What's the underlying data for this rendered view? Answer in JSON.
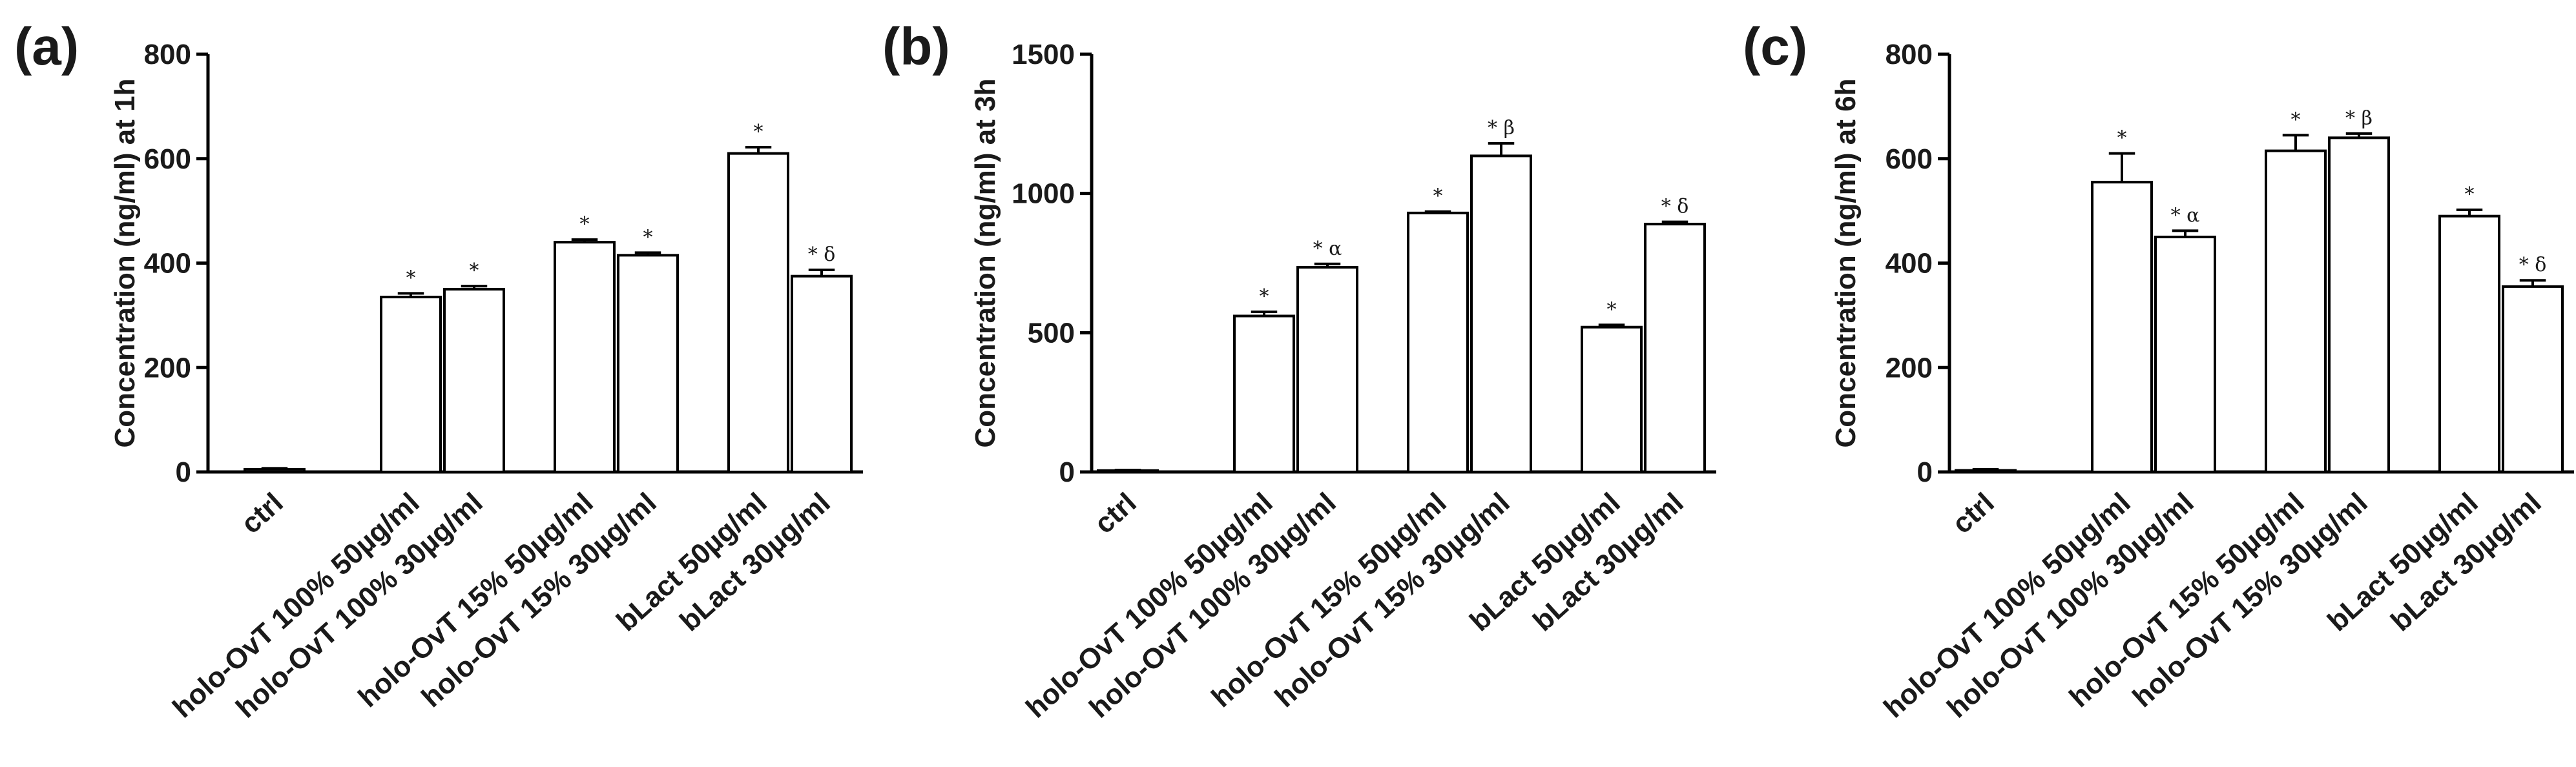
{
  "categories": [
    "ctrl",
    "holo-OvT 100% 50µg/ml",
    "holo-OvT 100% 30µg/ml",
    "holo-OvT 15% 50µg/ml",
    "holo-OvT 15% 30µg/ml",
    "bLact 50µg/ml",
    "bLact 30µg/ml"
  ],
  "chart_data": [
    {
      "type": "bar",
      "panel": "(a)",
      "ylabel": "Concentration (ng/ml) at 1h",
      "ylim": [
        0,
        800
      ],
      "yticks": [
        0,
        200,
        400,
        600,
        800
      ],
      "categories": [
        "ctrl",
        "holo-OvT 100% 50µg/ml",
        "holo-OvT 100% 30µg/ml",
        "holo-OvT 15% 50µg/ml",
        "holo-OvT 15% 30µg/ml",
        "bLact 50µg/ml",
        "bLact 30µg/ml"
      ],
      "values": [
        5,
        335,
        350,
        440,
        415,
        610,
        375
      ],
      "errors": [
        2,
        7,
        6,
        5,
        5,
        12,
        12
      ],
      "annotations": [
        "",
        "*",
        "*",
        "*",
        "*",
        "*",
        "* δ"
      ]
    },
    {
      "type": "bar",
      "panel": "(b)",
      "ylabel": "Concentration (ng/ml) at 3h",
      "ylim": [
        0,
        1500
      ],
      "yticks": [
        0,
        500,
        1000,
        1500
      ],
      "categories": [
        "ctrl",
        "holo-OvT 100% 50µg/ml",
        "holo-OvT 100% 30µg/ml",
        "holo-OvT 15% 50µg/ml",
        "holo-OvT 15% 30µg/ml",
        "bLact 50µg/ml",
        "bLact 30µg/ml"
      ],
      "values": [
        5,
        560,
        735,
        930,
        1135,
        520,
        890
      ],
      "errors": [
        2,
        15,
        12,
        5,
        45,
        8,
        8
      ],
      "annotations": [
        "",
        "*",
        "* α",
        "*",
        "* β",
        "*",
        "* δ"
      ]
    },
    {
      "type": "bar",
      "panel": "(c)",
      "ylabel": "Concentration (ng/ml) at 6h",
      "ylim": [
        0,
        800
      ],
      "yticks": [
        0,
        200,
        400,
        600,
        800
      ],
      "categories": [
        "ctrl",
        "holo-OvT 100% 50µg/ml",
        "holo-OvT 100% 30µg/ml",
        "holo-OvT 15% 50µg/ml",
        "holo-OvT 15% 30µg/ml",
        "bLact 50µg/ml",
        "bLact 30µg/ml"
      ],
      "values": [
        3,
        555,
        450,
        615,
        640,
        490,
        355
      ],
      "errors": [
        2,
        55,
        12,
        30,
        8,
        12,
        12
      ],
      "annotations": [
        "",
        "*",
        "* α",
        "*",
        "* β",
        "*",
        "* δ"
      ]
    }
  ]
}
